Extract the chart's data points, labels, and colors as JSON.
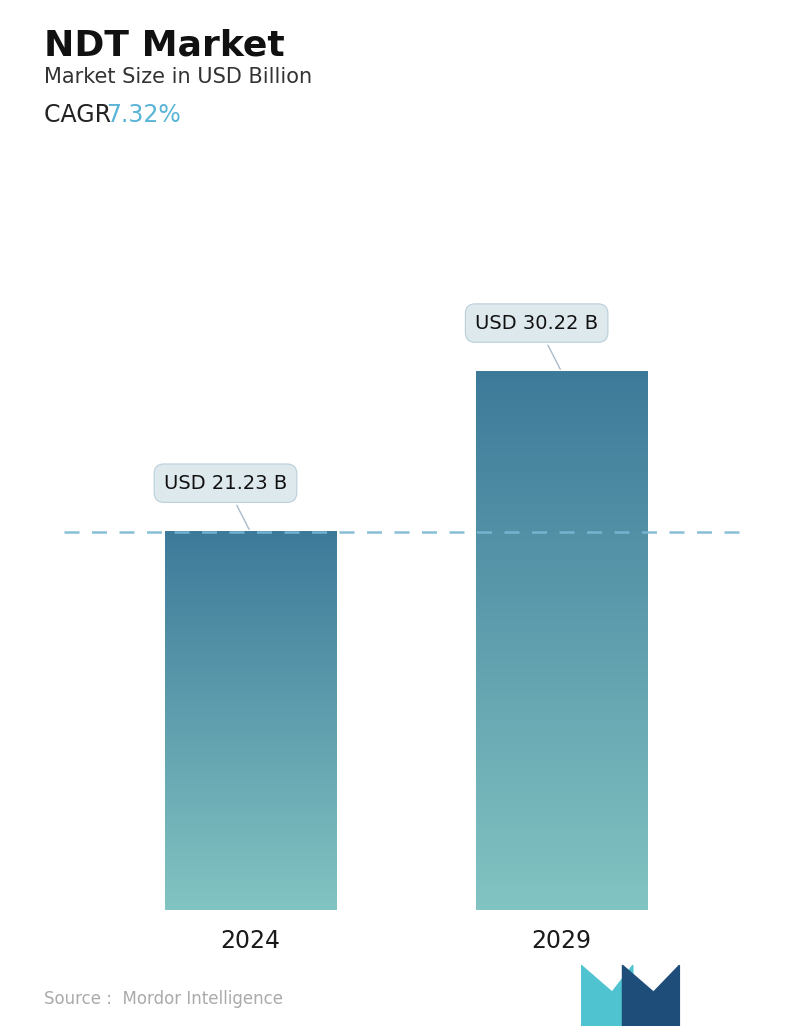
{
  "title": "NDT Market",
  "subtitle": "Market Size in USD Billion",
  "cagr_label": "CAGR ",
  "cagr_value": "7.32%",
  "cagr_color": "#5ab4d6",
  "categories": [
    "2024",
    "2029"
  ],
  "values": [
    21.23,
    30.22
  ],
  "bar_labels": [
    "USD 21.23 B",
    "USD 30.22 B"
  ],
  "bar_top_color": "#3d7a9a",
  "bar_bottom_color": "#82c4c2",
  "dashed_line_color": "#7ab8d4",
  "dashed_line_value": 21.23,
  "background_color": "#ffffff",
  "source_text": "Source :  Mordor Intelligence",
  "source_color": "#aaaaaa",
  "title_fontsize": 26,
  "subtitle_fontsize": 15,
  "cagr_fontsize": 17,
  "xlabel_fontsize": 17,
  "label_fontsize": 14,
  "ylim": [
    0,
    36
  ],
  "bar_width": 0.55
}
